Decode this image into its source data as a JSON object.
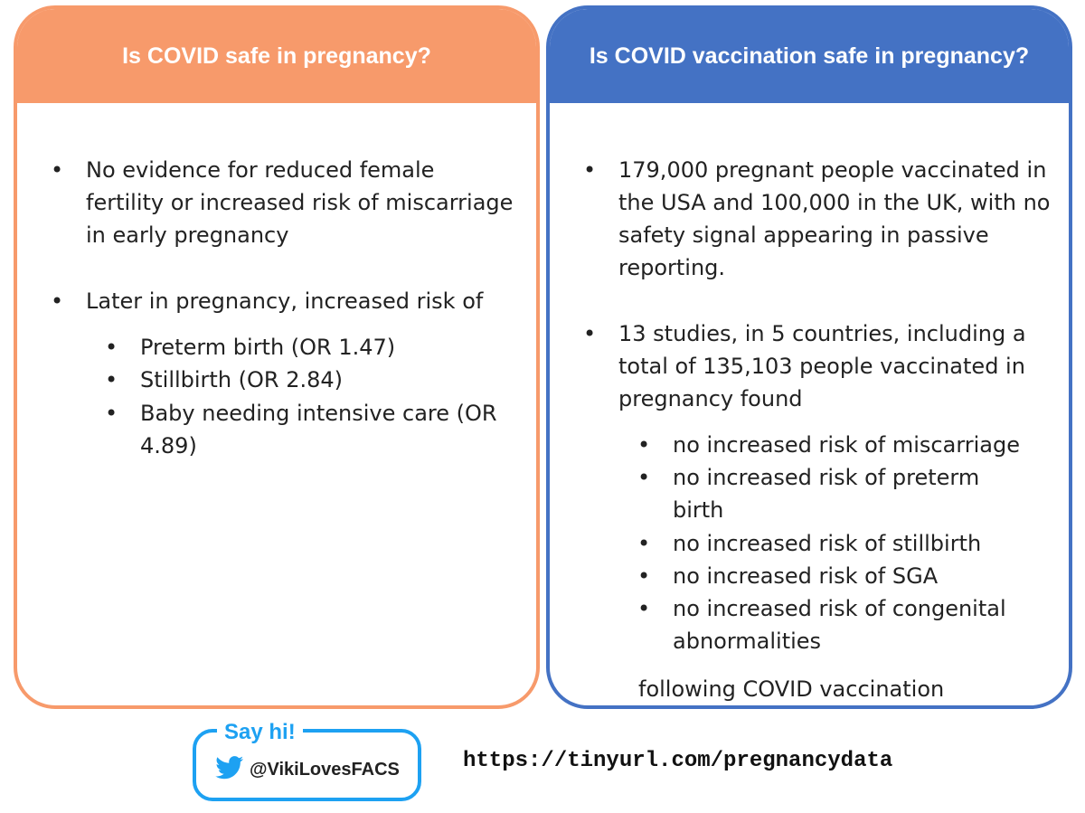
{
  "left_panel": {
    "title": "Is COVID safe in pregnancy?",
    "bullets": [
      {
        "text": "No evidence for reduced female fertility or increased risk of miscarriage in early pregnancy"
      },
      {
        "text": "Later in pregnancy, increased risk of"
      }
    ],
    "sub_bullets": [
      "Preterm birth (OR 1.47)",
      "Stillbirth (OR 2.84)",
      "Baby needing intensive care (OR 4.89)"
    ]
  },
  "right_panel": {
    "title": "Is COVID vaccination safe in pregnancy?",
    "bullets": [
      {
        "text": "179,000 pregnant people vaccinated in the USA and 100,000 in the UK, with no safety signal appearing in passive reporting."
      },
      {
        "text": "13 studies, in 5 countries, including a total of 135,103 people vaccinated in pregnancy found"
      }
    ],
    "sub_bullets": [
      "no increased risk of miscarriage",
      "no increased risk of preterm birth",
      "no increased risk of stillbirth",
      "no increased risk of SGA",
      "no increased risk of congenital abnormalities"
    ],
    "footer_text": "following COVID vaccination"
  },
  "social": {
    "say_hi": "Say hi!",
    "handle": "@VikiLovesFACS",
    "icon": "twitter-bird-icon"
  },
  "url": "https://tinyurl.com/pregnancydata",
  "colors": {
    "left_accent": "#F79A6B",
    "right_accent": "#4472C4",
    "twitter_blue": "#1DA1F2"
  }
}
